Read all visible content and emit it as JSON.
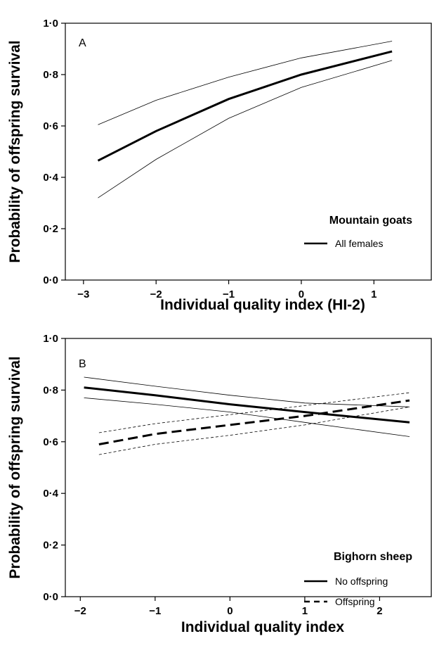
{
  "chart_data": [
    {
      "type": "line",
      "panel_label": "A",
      "xlabel": "Individual quality index (HI-2)",
      "ylabel": "Probability of offspring survival",
      "xlim": [
        -3.25,
        1.8
      ],
      "ylim": [
        0,
        1
      ],
      "xticks": [
        -3,
        -2,
        -1,
        0,
        1
      ],
      "xtick_labels": [
        "−3",
        "−2",
        "−1",
        "0",
        "1"
      ],
      "yticks": [
        0,
        0.2,
        0.4,
        0.6,
        0.8,
        1.0
      ],
      "ytick_labels": [
        "0·0",
        "0·2",
        "0·4",
        "0·6",
        "0·8",
        "1·0"
      ],
      "legend_title": "Mountain goats",
      "legend_position": "bottom-right",
      "grid": false,
      "series": [
        {
          "name": "All females",
          "style": "solid",
          "x": [
            -2.8,
            -2.0,
            -1.0,
            0.0,
            1.25
          ],
          "y": [
            0.465,
            0.58,
            0.705,
            0.8,
            0.89
          ],
          "ci_lower": [
            0.32,
            0.47,
            0.63,
            0.75,
            0.855
          ],
          "ci_upper": [
            0.605,
            0.7,
            0.79,
            0.865,
            0.93
          ]
        }
      ]
    },
    {
      "type": "line",
      "panel_label": "B",
      "xlabel": "Individual quality index",
      "ylabel": "Probability of offspring survival",
      "xlim": [
        -2.2,
        2.7
      ],
      "ylim": [
        0,
        1
      ],
      "xticks": [
        -2,
        -1,
        0,
        1,
        2
      ],
      "xtick_labels": [
        "−2",
        "−1",
        "0",
        "1",
        "2"
      ],
      "yticks": [
        0,
        0.2,
        0.4,
        0.6,
        0.8,
        1.0
      ],
      "ytick_labels": [
        "0·0",
        "0·2",
        "0·4",
        "0·6",
        "0·8",
        "1·0"
      ],
      "legend_title": "Bighorn sheep",
      "legend_position": "bottom-right",
      "grid": false,
      "series": [
        {
          "name": "No offspring",
          "style": "solid",
          "x": [
            -1.95,
            -1.0,
            0.0,
            1.0,
            2.4
          ],
          "y": [
            0.81,
            0.78,
            0.745,
            0.715,
            0.675
          ],
          "ci_lower": [
            0.77,
            0.745,
            0.715,
            0.675,
            0.62
          ],
          "ci_upper": [
            0.85,
            0.815,
            0.78,
            0.75,
            0.735
          ]
        },
        {
          "name": "Offspring",
          "style": "dashed",
          "x": [
            -1.75,
            -1.0,
            0.0,
            1.0,
            2.4
          ],
          "y": [
            0.59,
            0.63,
            0.665,
            0.7,
            0.76
          ],
          "ci_lower": [
            0.55,
            0.59,
            0.625,
            0.665,
            0.735
          ],
          "ci_upper": [
            0.635,
            0.67,
            0.705,
            0.74,
            0.79
          ]
        }
      ]
    }
  ]
}
